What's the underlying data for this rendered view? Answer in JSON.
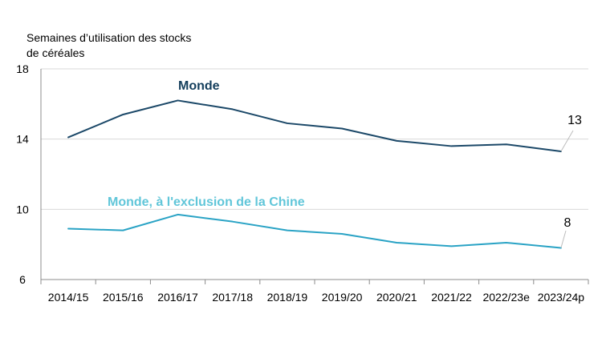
{
  "chart_data": {
    "type": "line",
    "title": "",
    "ylabel": "Semaines d’utilisation des stocks de céréales",
    "ylabel_lines": [
      "Semaines d’utilisation des stocks",
      "de céréales"
    ],
    "xlabel": "",
    "categories": [
      "2014/15",
      "2015/16",
      "2016/17",
      "2017/18",
      "2018/19",
      "2019/20",
      "2020/21",
      "2021/22",
      "2022/23e",
      "2023/24p"
    ],
    "ylim": [
      6,
      18
    ],
    "yticks": [
      6,
      10,
      14,
      18
    ],
    "grid": "horizontal",
    "legend": "direct labels on series",
    "series": [
      {
        "name": "Monde",
        "color": "#1b4868",
        "label_color": "#16405e",
        "values": [
          14.1,
          15.4,
          16.2,
          15.7,
          14.9,
          14.6,
          13.9,
          13.6,
          13.7,
          13.3
        ],
        "end_label": "13"
      },
      {
        "name": "Monde, à l'exclusion de la Chine",
        "color": "#2aa3c5",
        "label_color": "#61c6d9",
        "values": [
          8.9,
          8.8,
          9.7,
          9.3,
          8.8,
          8.6,
          8.1,
          7.9,
          8.1,
          7.8
        ],
        "end_label": "8"
      }
    ],
    "colors": {
      "axis": "#8c8c8c",
      "grid": "#d9d9d9",
      "text": "#000000"
    }
  }
}
